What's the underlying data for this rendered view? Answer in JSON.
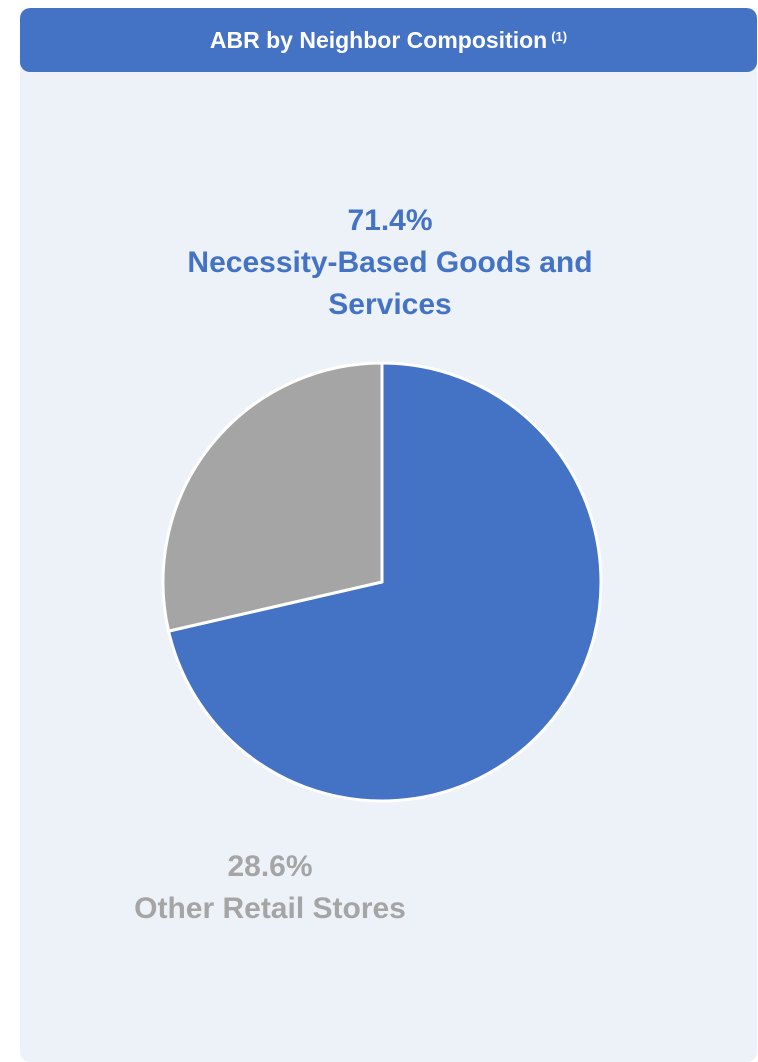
{
  "header": {
    "title": "ABR by Neighbor Composition",
    "footnote": "(1)"
  },
  "colors": {
    "header_bg": "#4472c4",
    "panel_bg": "#edf2f9",
    "slice_border": "#ffffff"
  },
  "chart_data": {
    "type": "pie",
    "title": "ABR by Neighbor Composition",
    "slices": [
      {
        "label": "Necessity-Based Goods and Services",
        "value": 71.4,
        "display": "71.4%",
        "color": "#4472c4"
      },
      {
        "label": "Other Retail Stores",
        "value": 28.6,
        "display": "28.6%",
        "color": "#a5a5a5"
      }
    ],
    "start_angle_deg": 270,
    "direction": "clockwise"
  }
}
